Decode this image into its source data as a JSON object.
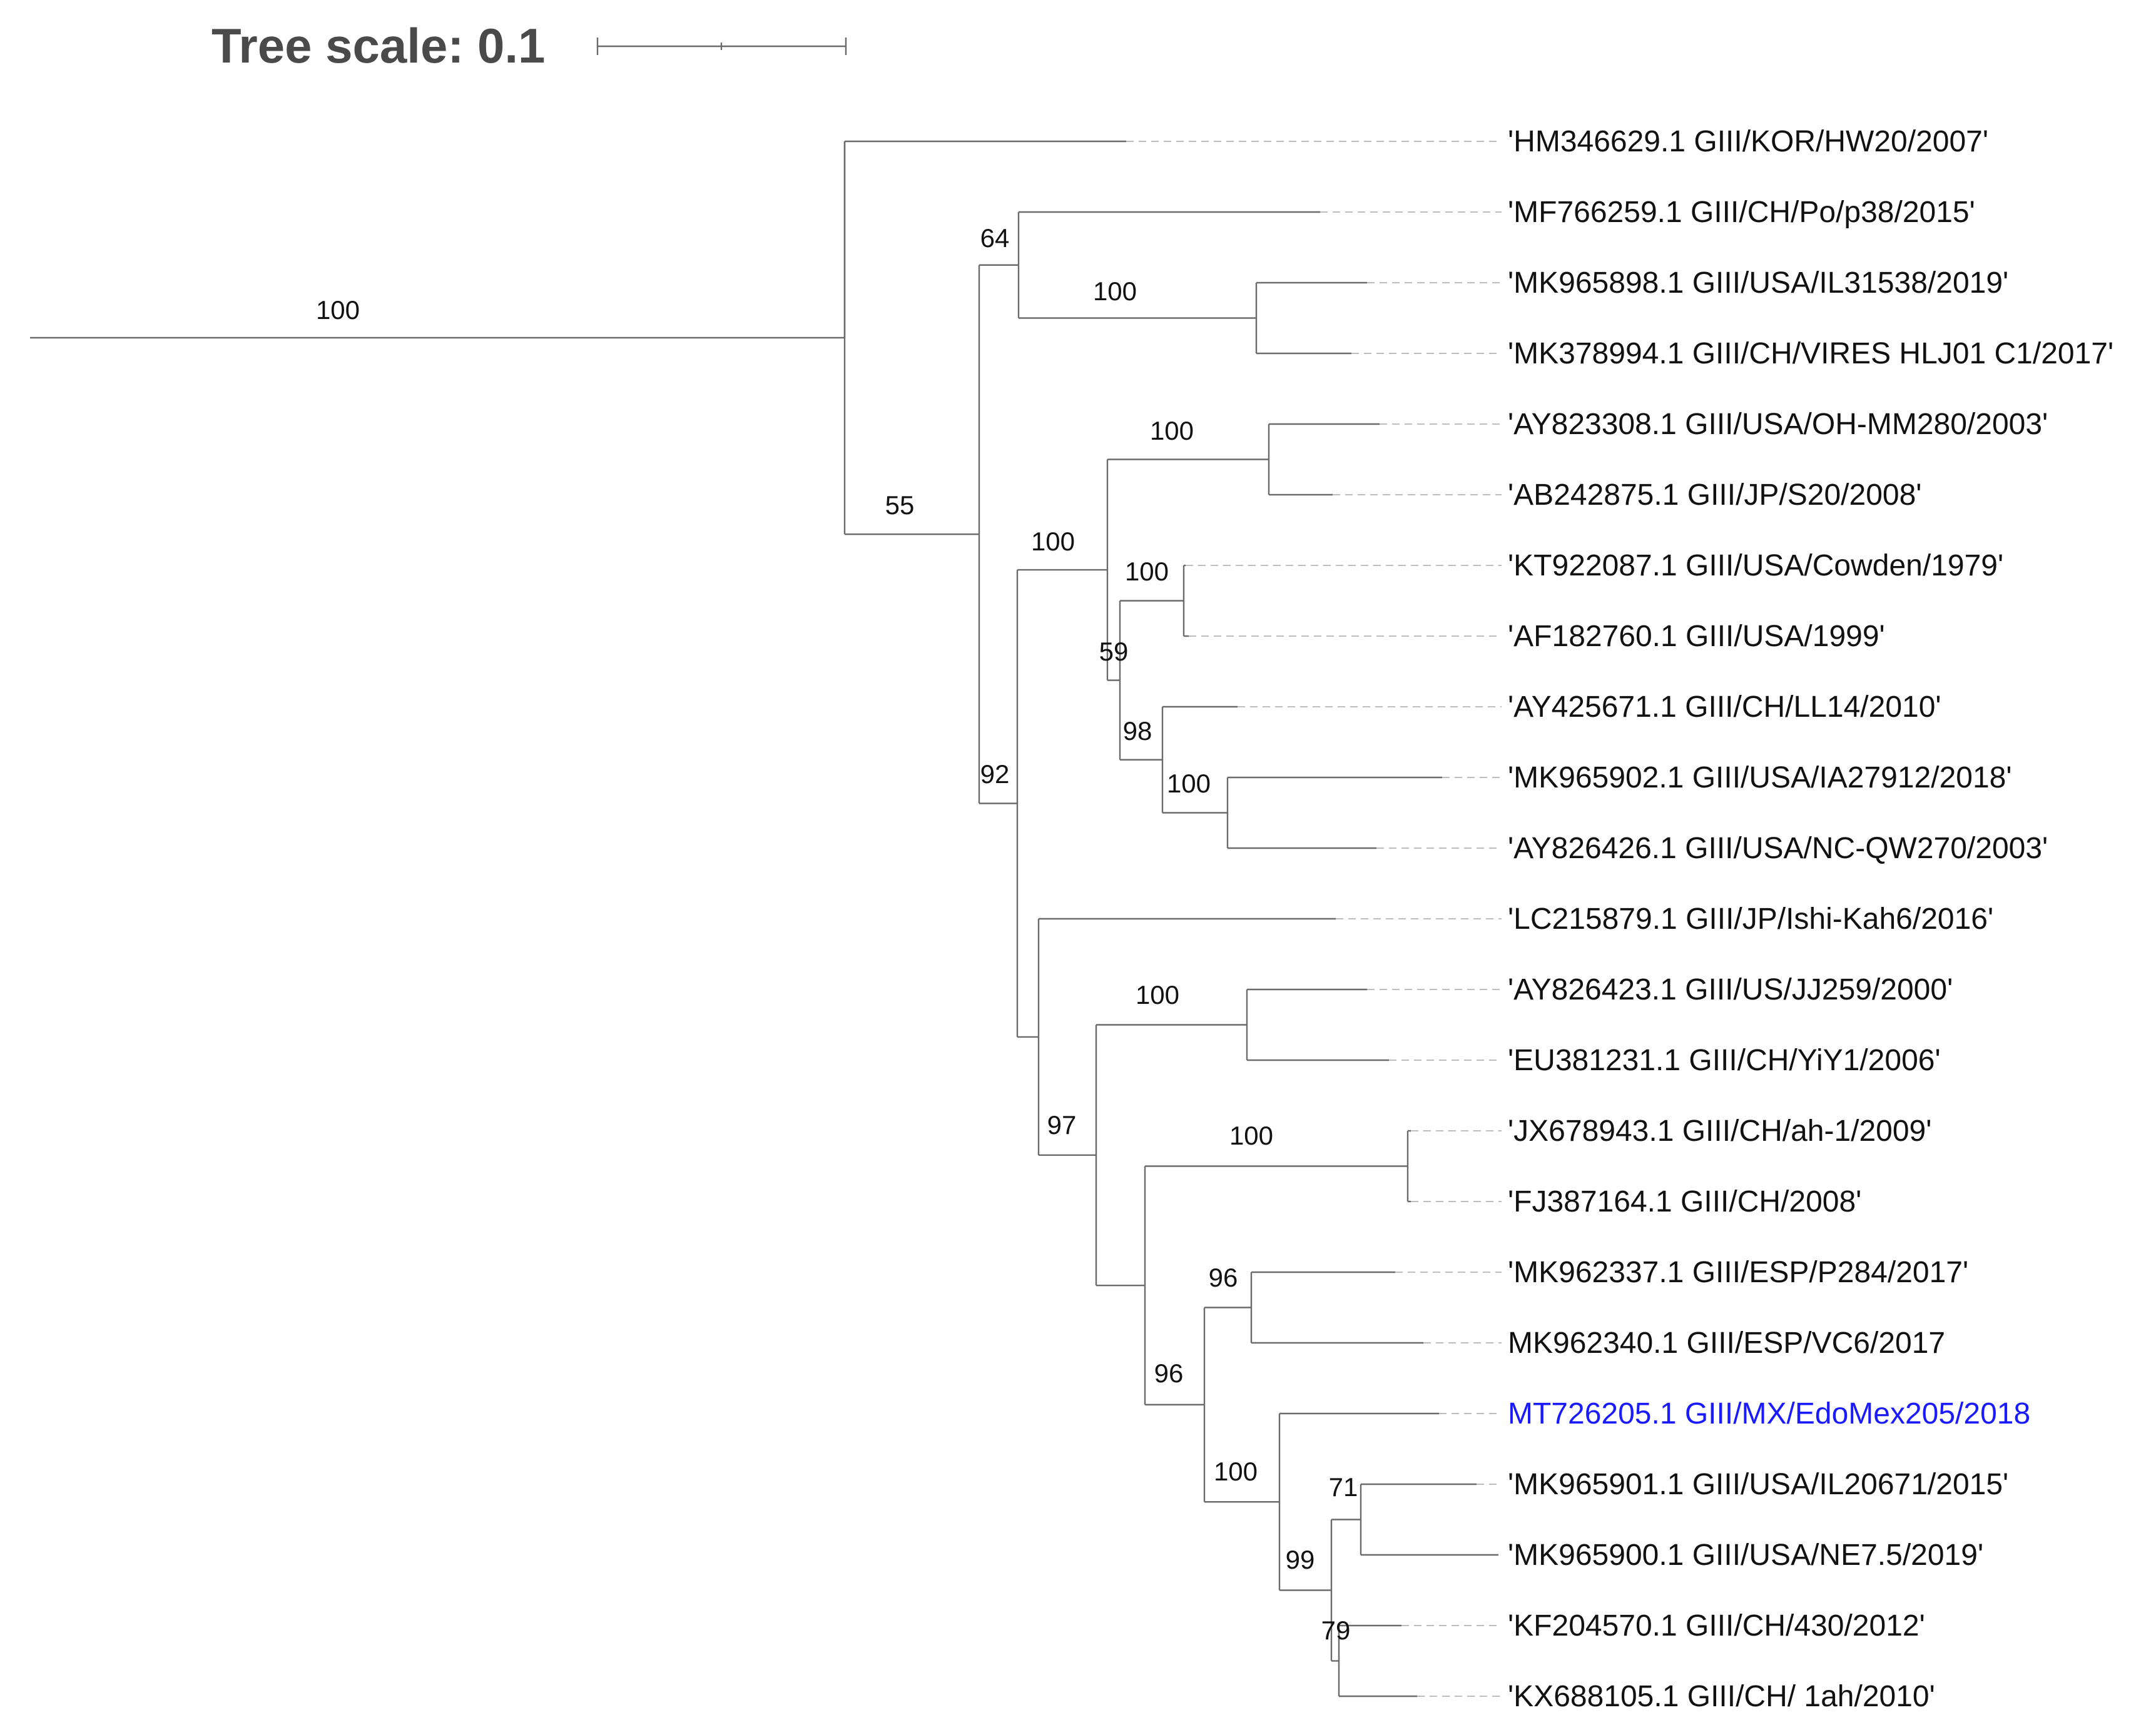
{
  "tree_scale": {
    "label": "Tree scale: 0.1"
  },
  "leaves": [
    {
      "id": "HM346629",
      "label": "'HM346629.1 GIII/KOR/HW20/2007'"
    },
    {
      "id": "MF766259",
      "label": "'MF766259.1 GIII/CH/Po/p38/2015'"
    },
    {
      "id": "MK965898",
      "label": "'MK965898.1 GIII/USA/IL31538/2019'"
    },
    {
      "id": "MK378994",
      "label": "'MK378994.1 GIII/CH/VIRES HLJ01 C1/2017'"
    },
    {
      "id": "AY823308",
      "label": "'AY823308.1 GIII/USA/OH-MM280/2003'"
    },
    {
      "id": "AB242875",
      "label": "'AB242875.1 GIII/JP/S20/2008'"
    },
    {
      "id": "KT922087",
      "label": "'KT922087.1 GIII/USA/Cowden/1979'"
    },
    {
      "id": "AF182760",
      "label": "'AF182760.1 GIII/USA/1999'"
    },
    {
      "id": "AY425671",
      "label": "'AY425671.1 GIII/CH/LL14/2010'"
    },
    {
      "id": "MK965902",
      "label": "'MK965902.1 GIII/USA/IA27912/2018'"
    },
    {
      "id": "AY826426",
      "label": "'AY826426.1 GIII/USA/NC-QW270/2003'"
    },
    {
      "id": "LC215879",
      "label": "'LC215879.1 GIII/JP/Ishi-Kah6/2016'"
    },
    {
      "id": "AY826423",
      "label": "'AY826423.1 GIII/US/JJ259/2000'"
    },
    {
      "id": "EU381231",
      "label": "'EU381231.1 GIII/CH/YiY1/2006'"
    },
    {
      "id": "JX678943",
      "label": "'JX678943.1 GIII/CH/ah-1/2009'"
    },
    {
      "id": "FJ387164",
      "label": "'FJ387164.1 GIII/CH/2008'"
    },
    {
      "id": "MK962337",
      "label": "'MK962337.1 GIII/ESP/P284/2017'"
    },
    {
      "id": "MK962340",
      "label": "MK962340.1 GIII/ESP/VC6/2017"
    },
    {
      "id": "MT726205",
      "label": "MT726205.1 GIII/MX/EdoMex205/2018",
      "highlight": true
    },
    {
      "id": "MK965901",
      "label": "'MK965901.1 GIII/USA/IL20671/2015'"
    },
    {
      "id": "MK965900",
      "label": "'MK965900.1 GIII/USA/NE7.5/2019'"
    },
    {
      "id": "KF204570",
      "label": "'KF204570.1 GIII/CH/430/2012'"
    },
    {
      "id": "KX688105",
      "label": "'KX688105.1 GIII/CH/ 1ah/2010'"
    }
  ],
  "support_values": {
    "root": "100",
    "n_ingroup": "55",
    "n_clade_a": "64",
    "n_mk965898_mk378994": "100",
    "n_clade_b": "92",
    "n_clade_c": "100",
    "n_ay823308_ab242875": "100",
    "n_clade_d": "59",
    "n_kt922087_af182760": "100",
    "n_clade_e": "98",
    "n_mk965902_ay826426": "100",
    "n_clade_f": "97",
    "n_ay826423_eu381231": "100",
    "n_jx678943_fj387164": "100",
    "n_clade_g": "96",
    "n_clade_h": "96",
    "n_clade_i": "100",
    "n_clade_j": "99",
    "n_mk965901_mk965900": "71",
    "n_kf204570_kx688105": "79"
  },
  "colors": {
    "highlight": "#1a1aff",
    "text": "#111111",
    "branch": "#6b6b6b"
  }
}
